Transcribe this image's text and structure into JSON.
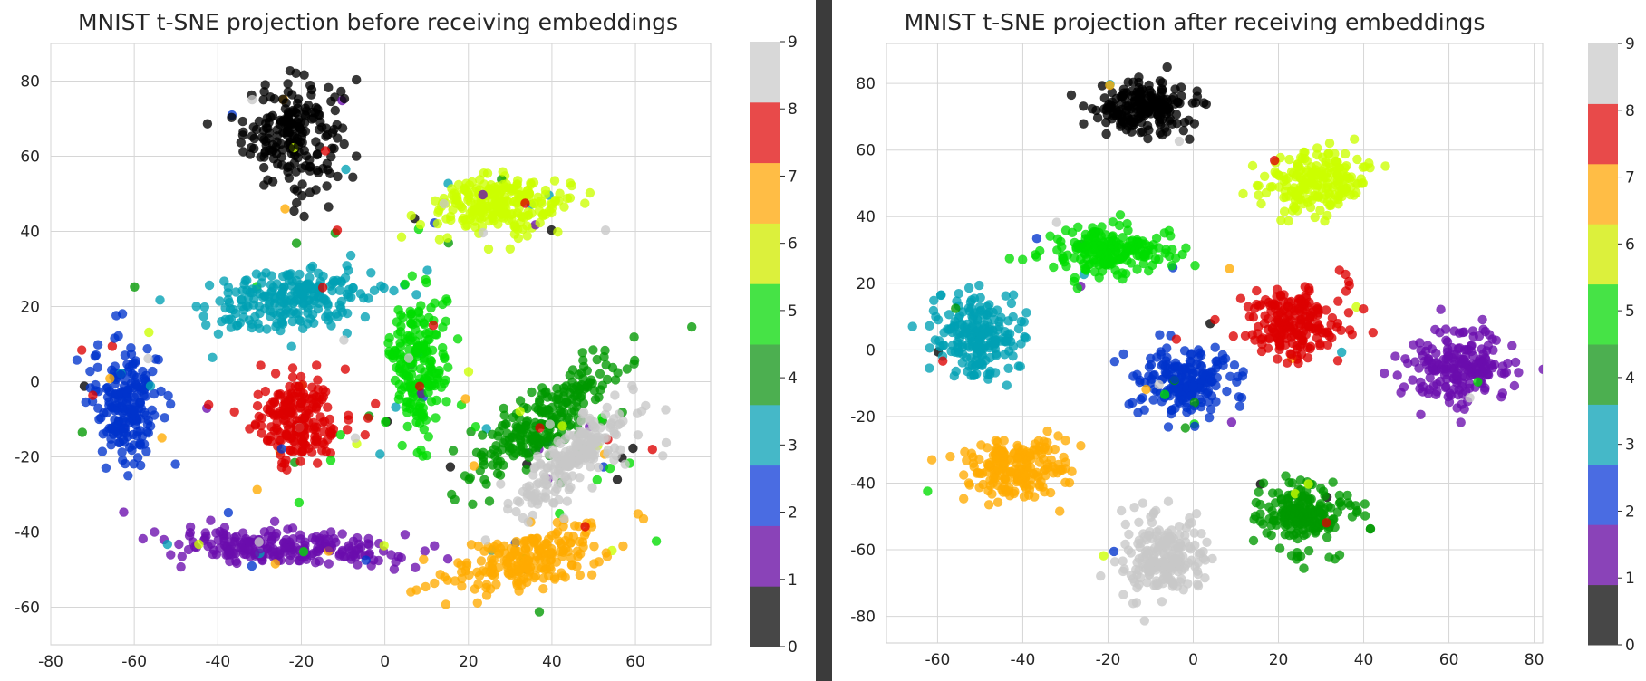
{
  "chart_data": [
    {
      "type": "scatter",
      "title": "MNIST t-SNE projection before receiving embeddings",
      "xlabel": "",
      "ylabel": "",
      "xlim": [
        -80,
        78
      ],
      "ylim": [
        -70,
        90
      ],
      "xticks": [
        -80,
        -60,
        -40,
        -20,
        0,
        20,
        40,
        60
      ],
      "yticks": [
        -60,
        -40,
        -20,
        0,
        20,
        40,
        60,
        80
      ],
      "grid": true,
      "colorbar": {
        "ticks": [
          0,
          1,
          2,
          3,
          4,
          5,
          6,
          7,
          8,
          9
        ],
        "colors": [
          "#474747",
          "#8a43b8",
          "#4a6ce2",
          "#45b8c8",
          "#4caf50",
          "#46e346",
          "#dcf03c",
          "#ffbd45",
          "#e84a4a",
          "#d8d8d8"
        ]
      },
      "clusters": [
        {
          "label": 0,
          "color": "#000000",
          "cx": -22,
          "cy": 66,
          "rx": 13,
          "ry": 16,
          "n": 200
        },
        {
          "label": 1,
          "color": "#6a0dad",
          "cx": -25,
          "cy": -44,
          "rx": 30,
          "ry": 5,
          "n": 220,
          "tilt": -0.05
        },
        {
          "label": 2,
          "color": "#0033cc",
          "cx": -62,
          "cy": -5,
          "rx": 9,
          "ry": 18,
          "n": 200
        },
        {
          "label": 3,
          "color": "#00a0b4",
          "cx": -24,
          "cy": 22,
          "rx": 22,
          "ry": 9,
          "n": 230,
          "tilt": 0.15
        },
        {
          "label": 4,
          "color": "#009900",
          "cx": 38,
          "cy": -10,
          "rx": 28,
          "ry": 8,
          "n": 230,
          "tilt": 0.75
        },
        {
          "label": 5,
          "color": "#00dd00",
          "cx": 8,
          "cy": 5,
          "rx": 7,
          "ry": 22,
          "n": 200
        },
        {
          "label": 6,
          "color": "#ccff00",
          "cx": 28,
          "cy": 47,
          "rx": 18,
          "ry": 8,
          "n": 230
        },
        {
          "label": 7,
          "color": "#ffaa00",
          "cx": 35,
          "cy": -47,
          "rx": 22,
          "ry": 8,
          "n": 220,
          "tilt": 0.3
        },
        {
          "label": 8,
          "color": "#dd0000",
          "cx": -21,
          "cy": -10,
          "rx": 11,
          "ry": 13,
          "n": 200
        },
        {
          "label": 9,
          "color": "#c8c8c8",
          "cx": 45,
          "cy": -20,
          "rx": 22,
          "ry": 7,
          "n": 210,
          "tilt": 0.8
        }
      ]
    },
    {
      "type": "scatter",
      "title": "MNIST t-SNE projection after receiving embeddings",
      "xlabel": "",
      "ylabel": "",
      "xlim": [
        -72,
        82
      ],
      "ylim": [
        -88,
        92
      ],
      "xticks": [
        -60,
        -40,
        -20,
        0,
        20,
        40,
        60,
        80
      ],
      "yticks": [
        -80,
        -60,
        -40,
        -20,
        0,
        20,
        40,
        60,
        80
      ],
      "grid": true,
      "colorbar": {
        "ticks": [
          0,
          1,
          2,
          3,
          4,
          5,
          6,
          7,
          8,
          9
        ],
        "colors": [
          "#474747",
          "#8a43b8",
          "#4a6ce2",
          "#45b8c8",
          "#4caf50",
          "#46e346",
          "#dcf03c",
          "#ffbd45",
          "#e84a4a",
          "#d8d8d8"
        ]
      },
      "clusters": [
        {
          "label": 0,
          "color": "#000000",
          "cx": -12,
          "cy": 73,
          "rx": 13,
          "ry": 9,
          "n": 200
        },
        {
          "label": 1,
          "color": "#6a0dad",
          "cx": 62,
          "cy": -5,
          "rx": 14,
          "ry": 12,
          "n": 200,
          "tilt": 0.7
        },
        {
          "label": 2,
          "color": "#0033cc",
          "cx": -2,
          "cy": -10,
          "rx": 13,
          "ry": 11,
          "n": 200
        },
        {
          "label": 3,
          "color": "#00a0b4",
          "cx": -51,
          "cy": 4,
          "rx": 11,
          "ry": 14,
          "n": 200
        },
        {
          "label": 4,
          "color": "#009900",
          "cx": 26,
          "cy": -50,
          "rx": 11,
          "ry": 11,
          "n": 200
        },
        {
          "label": 5,
          "color": "#00dd00",
          "cx": -19,
          "cy": 30,
          "rx": 17,
          "ry": 8,
          "n": 200
        },
        {
          "label": 6,
          "color": "#ccff00",
          "cx": 29,
          "cy": 50,
          "rx": 13,
          "ry": 11,
          "n": 200,
          "tilt": 0.3
        },
        {
          "label": 7,
          "color": "#ffaa00",
          "cx": -42,
          "cy": -36,
          "rx": 13,
          "ry": 11,
          "n": 200
        },
        {
          "label": 8,
          "color": "#dd0000",
          "cx": 24,
          "cy": 8,
          "rx": 13,
          "ry": 12,
          "n": 200
        },
        {
          "label": 9,
          "color": "#c8c8c8",
          "cx": -7,
          "cy": -62,
          "rx": 11,
          "ry": 14,
          "n": 200
        }
      ]
    }
  ]
}
